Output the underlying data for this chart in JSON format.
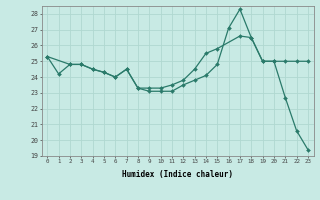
{
  "xlabel": "Humidex (Indice chaleur)",
  "ylabel": "",
  "xlim": [
    -0.5,
    23.5
  ],
  "ylim": [
    19,
    28.5
  ],
  "yticks": [
    19,
    20,
    21,
    22,
    23,
    24,
    25,
    26,
    27,
    28
  ],
  "xticks": [
    0,
    1,
    2,
    3,
    4,
    5,
    6,
    7,
    8,
    9,
    10,
    11,
    12,
    13,
    14,
    15,
    16,
    17,
    18,
    19,
    20,
    21,
    22,
    23
  ],
  "background_color": "#c8eae4",
  "grid_color": "#b0d8d0",
  "line_color": "#2a7a6a",
  "line1_x": [
    0,
    1,
    2,
    3,
    4,
    5,
    6,
    7,
    8,
    9,
    10,
    11,
    12,
    13,
    14,
    15,
    16,
    17,
    18,
    19,
    20,
    21,
    22,
    23
  ],
  "line1_y": [
    25.3,
    24.2,
    24.8,
    24.8,
    24.5,
    24.3,
    24.0,
    24.5,
    23.3,
    23.1,
    23.1,
    23.1,
    23.5,
    23.8,
    24.1,
    24.8,
    27.1,
    28.3,
    26.5,
    25.0,
    25.0,
    22.7,
    20.6,
    19.4
  ],
  "line2_x": [
    0,
    2,
    3,
    4,
    5,
    6,
    7,
    8,
    9,
    10,
    11,
    12,
    13,
    14,
    15,
    17,
    18,
    19,
    20,
    21,
    22,
    23
  ],
  "line2_y": [
    25.3,
    24.8,
    24.8,
    24.5,
    24.3,
    24.0,
    24.5,
    23.3,
    23.3,
    23.3,
    23.5,
    23.8,
    24.5,
    25.5,
    25.8,
    26.6,
    26.5,
    25.0,
    25.0,
    25.0,
    25.0,
    25.0
  ]
}
